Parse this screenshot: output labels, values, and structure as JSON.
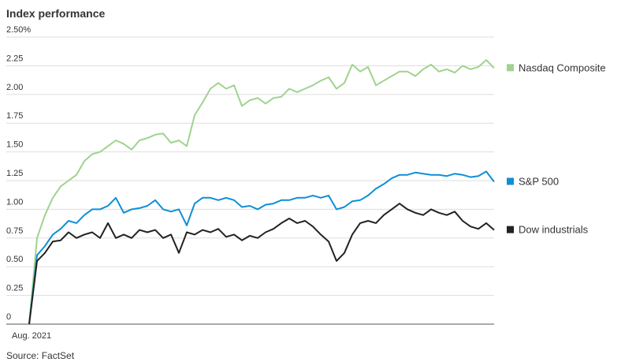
{
  "chart_data": {
    "type": "line",
    "title": "Index performance",
    "source": "Source: FactSet",
    "categories": [
      "Aug. 2021",
      null,
      null,
      null,
      null,
      null,
      null,
      null,
      null,
      null,
      null,
      null,
      null,
      null,
      null,
      null,
      null,
      null,
      null,
      null,
      null,
      null,
      null,
      null,
      null,
      null,
      null,
      null,
      null,
      null,
      null,
      null,
      null,
      null,
      null,
      null,
      null,
      null,
      null,
      null,
      null,
      null,
      null,
      null,
      null,
      null,
      null,
      null,
      null,
      null,
      null,
      null,
      null,
      null,
      null,
      null,
      null,
      null,
      null,
      null
    ],
    "ylim": [
      0,
      2.5
    ],
    "yticks": [
      0,
      0.25,
      {
        "value": 0.5,
        "label": "0.50"
      },
      0.75,
      {
        "value": 1,
        "label": "1.00"
      },
      1.25,
      {
        "value": 1.5,
        "label": "1.50"
      },
      1.75,
      {
        "value": 2,
        "label": "2.00"
      },
      2.25,
      {
        "value": 2.5,
        "label": "2.50%"
      }
    ],
    "grid": true,
    "series": [
      {
        "name": "Nasdaq Composite",
        "color": "#9fd38e",
        "values": [
          0,
          0.75,
          0.95,
          1.1,
          1.2,
          1.25,
          1.3,
          1.42,
          1.48,
          1.5,
          1.55,
          1.6,
          1.57,
          1.52,
          1.6,
          1.62,
          1.65,
          1.66,
          1.58,
          1.6,
          1.55,
          1.82,
          1.93,
          2.05,
          2.1,
          2.05,
          2.08,
          1.9,
          1.95,
          1.97,
          1.92,
          1.97,
          1.98,
          2.05,
          2.02,
          2.05,
          2.08,
          2.12,
          2.15,
          2.05,
          2.1,
          2.26,
          2.2,
          2.24,
          2.08,
          2.12,
          2.16,
          2.2,
          2.2,
          2.16,
          2.22,
          2.26,
          2.2,
          2.22,
          2.19,
          2.25,
          2.22,
          2.24,
          2.3,
          2.23
        ]
      },
      {
        "name": "S&P 500",
        "color": "#0f8fd6",
        "values": [
          0,
          0.6,
          0.68,
          0.78,
          0.83,
          0.9,
          0.88,
          0.95,
          1.0,
          1.0,
          1.03,
          1.1,
          0.97,
          1.0,
          1.01,
          1.03,
          1.08,
          1.0,
          0.98,
          1.0,
          0.86,
          1.05,
          1.1,
          1.1,
          1.08,
          1.1,
          1.08,
          1.02,
          1.03,
          1.0,
          1.04,
          1.05,
          1.08,
          1.08,
          1.1,
          1.1,
          1.12,
          1.1,
          1.12,
          1.0,
          1.02,
          1.07,
          1.08,
          1.12,
          1.18,
          1.22,
          1.27,
          1.3,
          1.3,
          1.32,
          1.31,
          1.3,
          1.3,
          1.29,
          1.31,
          1.3,
          1.28,
          1.29,
          1.33,
          1.24
        ]
      },
      {
        "name": "Dow industrials",
        "color": "#222222",
        "values": [
          0,
          0.55,
          0.62,
          0.72,
          0.73,
          0.8,
          0.75,
          0.78,
          0.8,
          0.75,
          0.88,
          0.75,
          0.78,
          0.75,
          0.82,
          0.8,
          0.82,
          0.75,
          0.78,
          0.62,
          0.8,
          0.78,
          0.82,
          0.8,
          0.83,
          0.76,
          0.78,
          0.73,
          0.77,
          0.75,
          0.8,
          0.83,
          0.88,
          0.92,
          0.88,
          0.9,
          0.85,
          0.78,
          0.72,
          0.55,
          0.62,
          0.78,
          0.88,
          0.9,
          0.88,
          0.95,
          1.0,
          1.05,
          1.0,
          0.97,
          0.95,
          1.0,
          0.97,
          0.95,
          0.98,
          0.9,
          0.85,
          0.83,
          0.88,
          0.82
        ]
      }
    ]
  }
}
